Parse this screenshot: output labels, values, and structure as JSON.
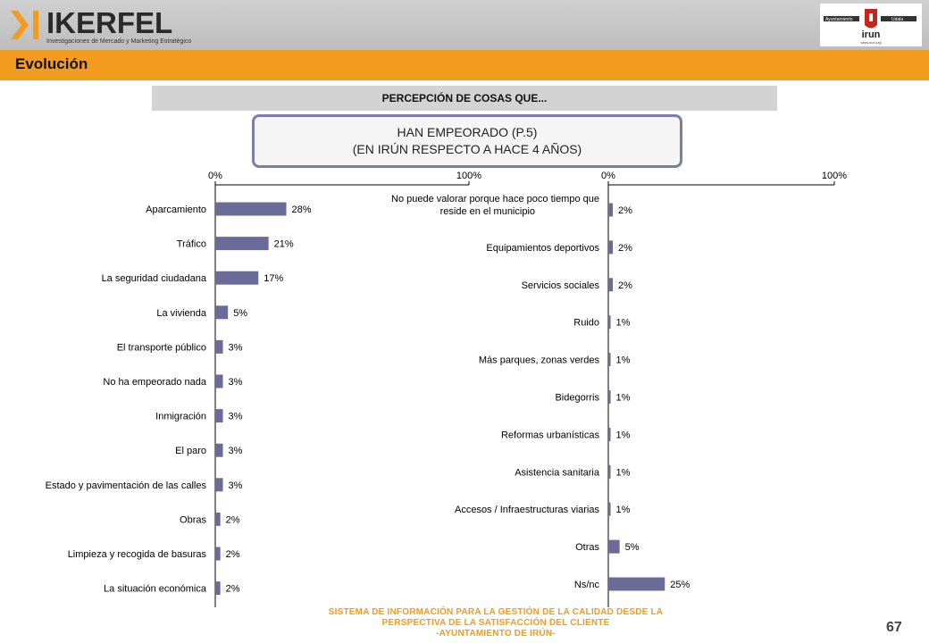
{
  "header": {
    "brand_name": "IKERFEL",
    "brand_tagline": "Investigaciones de Mercado y Marketing Estratégico",
    "client_logo": {
      "left_label": "Ayuntamiento",
      "right_label": "Udala",
      "name": "irun",
      "url": "www.irun.org"
    }
  },
  "section": {
    "title": "Evolución"
  },
  "subheader": "PERCEPCIÓN DE COSAS QUE...",
  "question": {
    "line1": "HAN EMPEORADO (P.5)",
    "line2": "(EN IRÚN RESPECTO A HACE 4 AÑOS)"
  },
  "colors": {
    "bar": "#6b6b9a",
    "accent": "#f39b1e",
    "box_border": "#7a7fa6"
  },
  "chart_data": [
    {
      "type": "bar",
      "orientation": "horizontal",
      "xlim": [
        0,
        100
      ],
      "tick_labels": [
        "0%",
        "100%"
      ],
      "categories": [
        "Aparcamiento",
        "Tráfico",
        "La seguridad ciudadana",
        "La vivienda",
        "El transporte público",
        "No ha empeorado nada",
        "Inmigración",
        "El paro",
        "Estado y pavimentación de las calles",
        "Obras",
        "Limpieza y recogida de basuras",
        "La situación económica"
      ],
      "values": [
        28,
        21,
        17,
        5,
        3,
        3,
        3,
        3,
        3,
        2,
        2,
        2
      ],
      "value_labels": [
        "28%",
        "21%",
        "17%",
        "5%",
        "3%",
        "3%",
        "3%",
        "3%",
        "3%",
        "2%",
        "2%",
        "2%"
      ]
    },
    {
      "type": "bar",
      "orientation": "horizontal",
      "xlim": [
        0,
        100
      ],
      "tick_labels": [
        "0%",
        "100%"
      ],
      "categories": [
        "No puede valorar porque hace poco tiempo que reside en el municipio",
        "Equipamientos deportivos",
        "Servicios sociales",
        "Ruido",
        "Más parques, zonas verdes",
        "Bidegorris",
        "Reformas urbanísticas",
        "Asistencia sanitaria",
        "Accesos / Infraestructuras viarias",
        "Otras",
        "Ns/nc"
      ],
      "category_lines": [
        [
          "No puede valorar porque hace poco tiempo que",
          "reside en el municipio"
        ],
        [
          "Equipamientos deportivos"
        ],
        [
          "Servicios sociales"
        ],
        [
          "Ruido"
        ],
        [
          "Más parques, zonas verdes"
        ],
        [
          "Bidegorris"
        ],
        [
          "Reformas urbanísticas"
        ],
        [
          "Asistencia sanitaria"
        ],
        [
          "Accesos / Infraestructuras viarias"
        ],
        [
          "Otras"
        ],
        [
          "Ns/nc"
        ]
      ],
      "values": [
        2,
        2,
        2,
        1,
        1,
        1,
        1,
        1,
        1,
        5,
        25
      ],
      "value_labels": [
        "2%",
        "2%",
        "2%",
        "1%",
        "1%",
        "1%",
        "1%",
        "1%",
        "1%",
        "5%",
        "25%"
      ]
    }
  ],
  "footer": {
    "line1": "SISTEMA DE INFORMACIÓN PARA LA GESTIÓN DE LA CALIDAD DESDE LA",
    "line2": "PERSPECTIVA DE LA SATISFACCIÓN DEL CLIENTE",
    "line3": "-AYUNTAMIENTO DE IRÚN-",
    "page_number": "67"
  }
}
